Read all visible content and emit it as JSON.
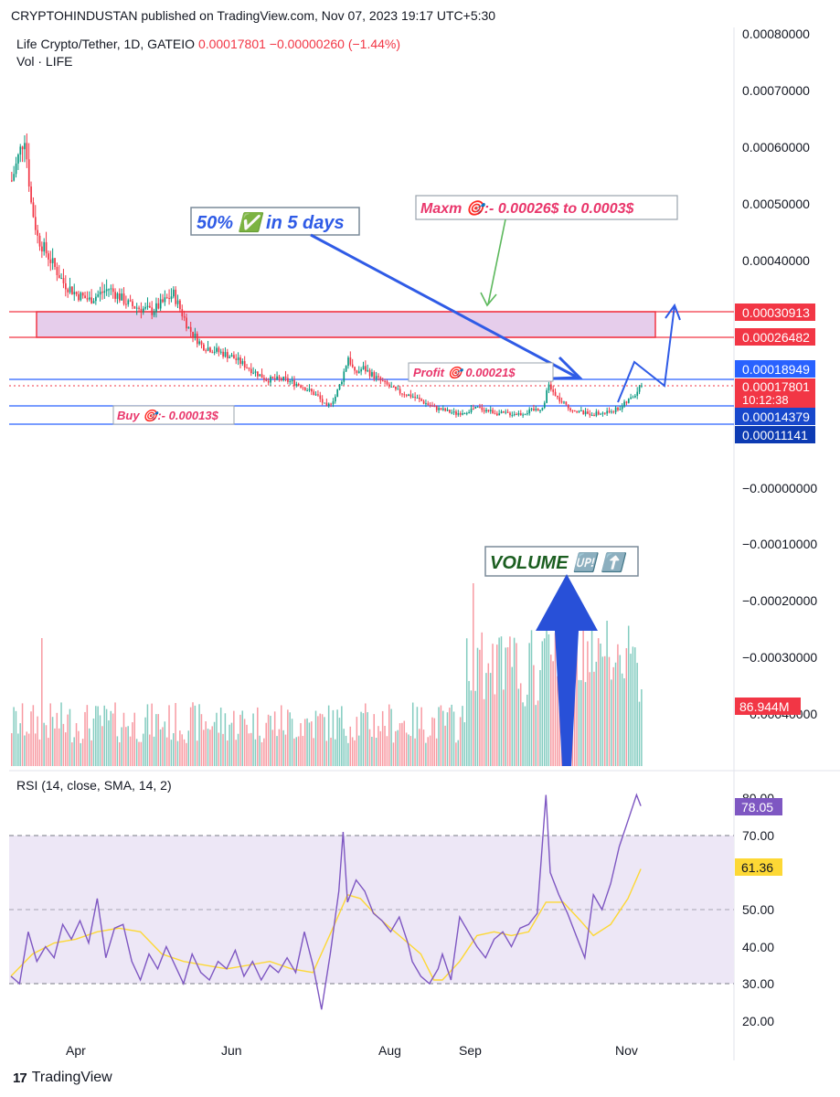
{
  "header": {
    "published": "CRYPTOHINDUSTAN published on TradingView.com, Nov 07, 2023 19:17 UTC+5:30"
  },
  "symbol": {
    "name": "Life Crypto/Tether, 1D, GATEIO",
    "price": "0.00017801",
    "change": "−0.00000260 (−1.44%)",
    "volume_label": "Vol · LIFE"
  },
  "rsi_title": "RSI (14, close, SMA, 14, 2)",
  "footer": {
    "brand": "TradingView",
    "logo": "17"
  },
  "colors": {
    "up": "#089981",
    "down": "#f23645",
    "blue_line": "#2962ff",
    "zone_fill": "#e6cdeb",
    "zone_border": "#f23645",
    "rsi_line": "#7e57c2",
    "rsi_ma": "#fdd835",
    "rsi_band": "#ede7f6",
    "annot_blue": "#2f5be6",
    "annot_pink": "#e9366b",
    "annot_green": "#1b5e20"
  },
  "annotations": {
    "gain": "50% ✅ in 5 days",
    "maxm": "Maxm 🎯:- 0.00026$ to 0.0003$",
    "profit": "Profit 🎯 0.00021$",
    "buy": "Buy 🎯:- 0.00013$",
    "volume": "VOLUME 🆙 ⬆️"
  },
  "chart_data": [
    {
      "type": "candlestick",
      "title": "Life Crypto/Tether, 1D, GATEIO",
      "x_tick_labels": [
        "Apr",
        "Jun",
        "Aug",
        "Sep",
        "Nov"
      ],
      "y_tick_labels": [
        "0.00080000",
        "0.00070000",
        "0.00060000",
        "0.00050000",
        "0.00040000",
        "−0.00000000",
        "−0.00010000",
        "−0.00020000",
        "−0.00030000",
        "−0.00040000"
      ],
      "ylim": [
        0.00011,
        0.00063
      ],
      "last_price": 0.00017801,
      "countdown": "10:12:38",
      "horizontal_levels": [
        {
          "label": "0.00030913",
          "value": 0.00030913,
          "color": "#f23645"
        },
        {
          "label": "0.00026482",
          "value": 0.00026482,
          "color": "#f23645"
        },
        {
          "label": "0.00018949",
          "value": 0.00018949,
          "color": "#2962ff"
        },
        {
          "label": "0.00014379",
          "value": 0.00014379,
          "color": "#2962ff"
        },
        {
          "label": "0.00011141",
          "value": 0.00011141,
          "color": "#2962ff"
        }
      ],
      "price_path": [
        [
          0,
          0.00054
        ],
        [
          3,
          0.00058
        ],
        [
          6,
          0.00062
        ],
        [
          9,
          0.0005
        ],
        [
          12,
          0.00044
        ],
        [
          18,
          0.0004
        ],
        [
          24,
          0.00036
        ],
        [
          30,
          0.00034
        ],
        [
          36,
          0.00033
        ],
        [
          45,
          0.00035
        ],
        [
          55,
          0.00032
        ],
        [
          65,
          0.00031
        ],
        [
          75,
          0.00034
        ],
        [
          82,
          0.00028
        ],
        [
          88,
          0.00025
        ],
        [
          95,
          0.00024
        ],
        [
          102,
          0.00023
        ],
        [
          110,
          0.00021
        ],
        [
          118,
          0.00019
        ],
        [
          126,
          0.00019
        ],
        [
          134,
          0.00018
        ],
        [
          142,
          0.00016
        ],
        [
          146,
          0.00014
        ],
        [
          150,
          0.00016
        ],
        [
          153,
          0.00019
        ],
        [
          156,
          0.00023
        ],
        [
          159,
          0.0002
        ],
        [
          163,
          0.00021
        ],
        [
          170,
          0.00019
        ],
        [
          178,
          0.00017
        ],
        [
          186,
          0.00016
        ],
        [
          196,
          0.00014
        ],
        [
          206,
          0.00013
        ],
        [
          216,
          0.00014
        ],
        [
          226,
          0.00013
        ],
        [
          236,
          0.00013
        ],
        [
          246,
          0.00014
        ],
        [
          249,
          0.00018
        ],
        [
          252,
          0.00016
        ],
        [
          258,
          0.00014
        ],
        [
          266,
          0.00013
        ],
        [
          274,
          0.00013
        ],
        [
          282,
          0.00014
        ],
        [
          288,
          0.00016
        ],
        [
          292,
          0.00018
        ]
      ]
    },
    {
      "type": "bar",
      "title": "Vol · LIFE",
      "last_value_label": "86.944M",
      "note": "daily volume histogram, values not labeled on an axis"
    },
    {
      "type": "line",
      "title": "RSI (14, close, SMA, 14, 2)",
      "ylim": [
        20,
        80
      ],
      "y_tick_labels": [
        "80.00",
        "70.00",
        "50.00",
        "40.00",
        "30.00",
        "20.00"
      ],
      "bands": [
        30,
        50,
        70
      ],
      "series": [
        {
          "name": "RSI",
          "last": "78.05",
          "color": "#7e57c2",
          "points": [
            [
              0,
              32
            ],
            [
              4,
              30
            ],
            [
              8,
              44
            ],
            [
              12,
              36
            ],
            [
              16,
              40
            ],
            [
              20,
              37
            ],
            [
              24,
              46
            ],
            [
              28,
              42
            ],
            [
              32,
              47
            ],
            [
              36,
              41
            ],
            [
              40,
              53
            ],
            [
              44,
              37
            ],
            [
              48,
              45
            ],
            [
              52,
              46
            ],
            [
              56,
              36
            ],
            [
              60,
              31
            ],
            [
              64,
              38
            ],
            [
              68,
              34
            ],
            [
              72,
              40
            ],
            [
              76,
              35
            ],
            [
              80,
              30
            ],
            [
              84,
              38
            ],
            [
              88,
              33
            ],
            [
              92,
              31
            ],
            [
              96,
              36
            ],
            [
              100,
              34
            ],
            [
              104,
              39
            ],
            [
              108,
              32
            ],
            [
              112,
              36
            ],
            [
              116,
              31
            ],
            [
              120,
              35
            ],
            [
              124,
              33
            ],
            [
              128,
              37
            ],
            [
              132,
              33
            ],
            [
              136,
              44
            ],
            [
              140,
              35
            ],
            [
              144,
              23
            ],
            [
              148,
              38
            ],
            [
              152,
              55
            ],
            [
              154,
              71
            ],
            [
              156,
              52
            ],
            [
              160,
              58
            ],
            [
              164,
              55
            ],
            [
              168,
              49
            ],
            [
              172,
              47
            ],
            [
              176,
              44
            ],
            [
              180,
              48
            ],
            [
              184,
              41
            ],
            [
              186,
              36
            ],
            [
              190,
              32
            ],
            [
              194,
              30
            ],
            [
              198,
              34
            ],
            [
              200,
              38
            ],
            [
              204,
              31
            ],
            [
              208,
              48
            ],
            [
              212,
              44
            ],
            [
              216,
              40
            ],
            [
              220,
              37
            ],
            [
              224,
              42
            ],
            [
              228,
              44
            ],
            [
              232,
              40
            ],
            [
              236,
              45
            ],
            [
              240,
              46
            ],
            [
              244,
              49
            ],
            [
              248,
              81
            ],
            [
              250,
              60
            ],
            [
              254,
              54
            ],
            [
              258,
              49
            ],
            [
              262,
              43
            ],
            [
              266,
              37
            ],
            [
              270,
              54
            ],
            [
              274,
              50
            ],
            [
              278,
              57
            ],
            [
              282,
              67
            ],
            [
              286,
              74
            ],
            [
              290,
              81
            ],
            [
              292,
              78
            ]
          ]
        },
        {
          "name": "RSI-based MA",
          "last": "61.36",
          "color": "#fdd835",
          "points": [
            [
              0,
              32
            ],
            [
              10,
              38
            ],
            [
              20,
              41
            ],
            [
              30,
              42
            ],
            [
              40,
              44
            ],
            [
              50,
              45
            ],
            [
              60,
              44
            ],
            [
              70,
              38
            ],
            [
              80,
              36
            ],
            [
              90,
              35
            ],
            [
              100,
              34
            ],
            [
              110,
              35
            ],
            [
              120,
              36
            ],
            [
              130,
              34
            ],
            [
              140,
              33
            ],
            [
              150,
              46
            ],
            [
              156,
              54
            ],
            [
              162,
              53
            ],
            [
              170,
              48
            ],
            [
              180,
              43
            ],
            [
              190,
              38
            ],
            [
              196,
              31
            ],
            [
              200,
              31
            ],
            [
              208,
              36
            ],
            [
              216,
              43
            ],
            [
              224,
              44
            ],
            [
              232,
              43
            ],
            [
              240,
              44
            ],
            [
              248,
              52
            ],
            [
              256,
              52
            ],
            [
              264,
              47
            ],
            [
              270,
              43
            ],
            [
              278,
              46
            ],
            [
              286,
              53
            ],
            [
              292,
              61
            ]
          ]
        }
      ]
    }
  ]
}
